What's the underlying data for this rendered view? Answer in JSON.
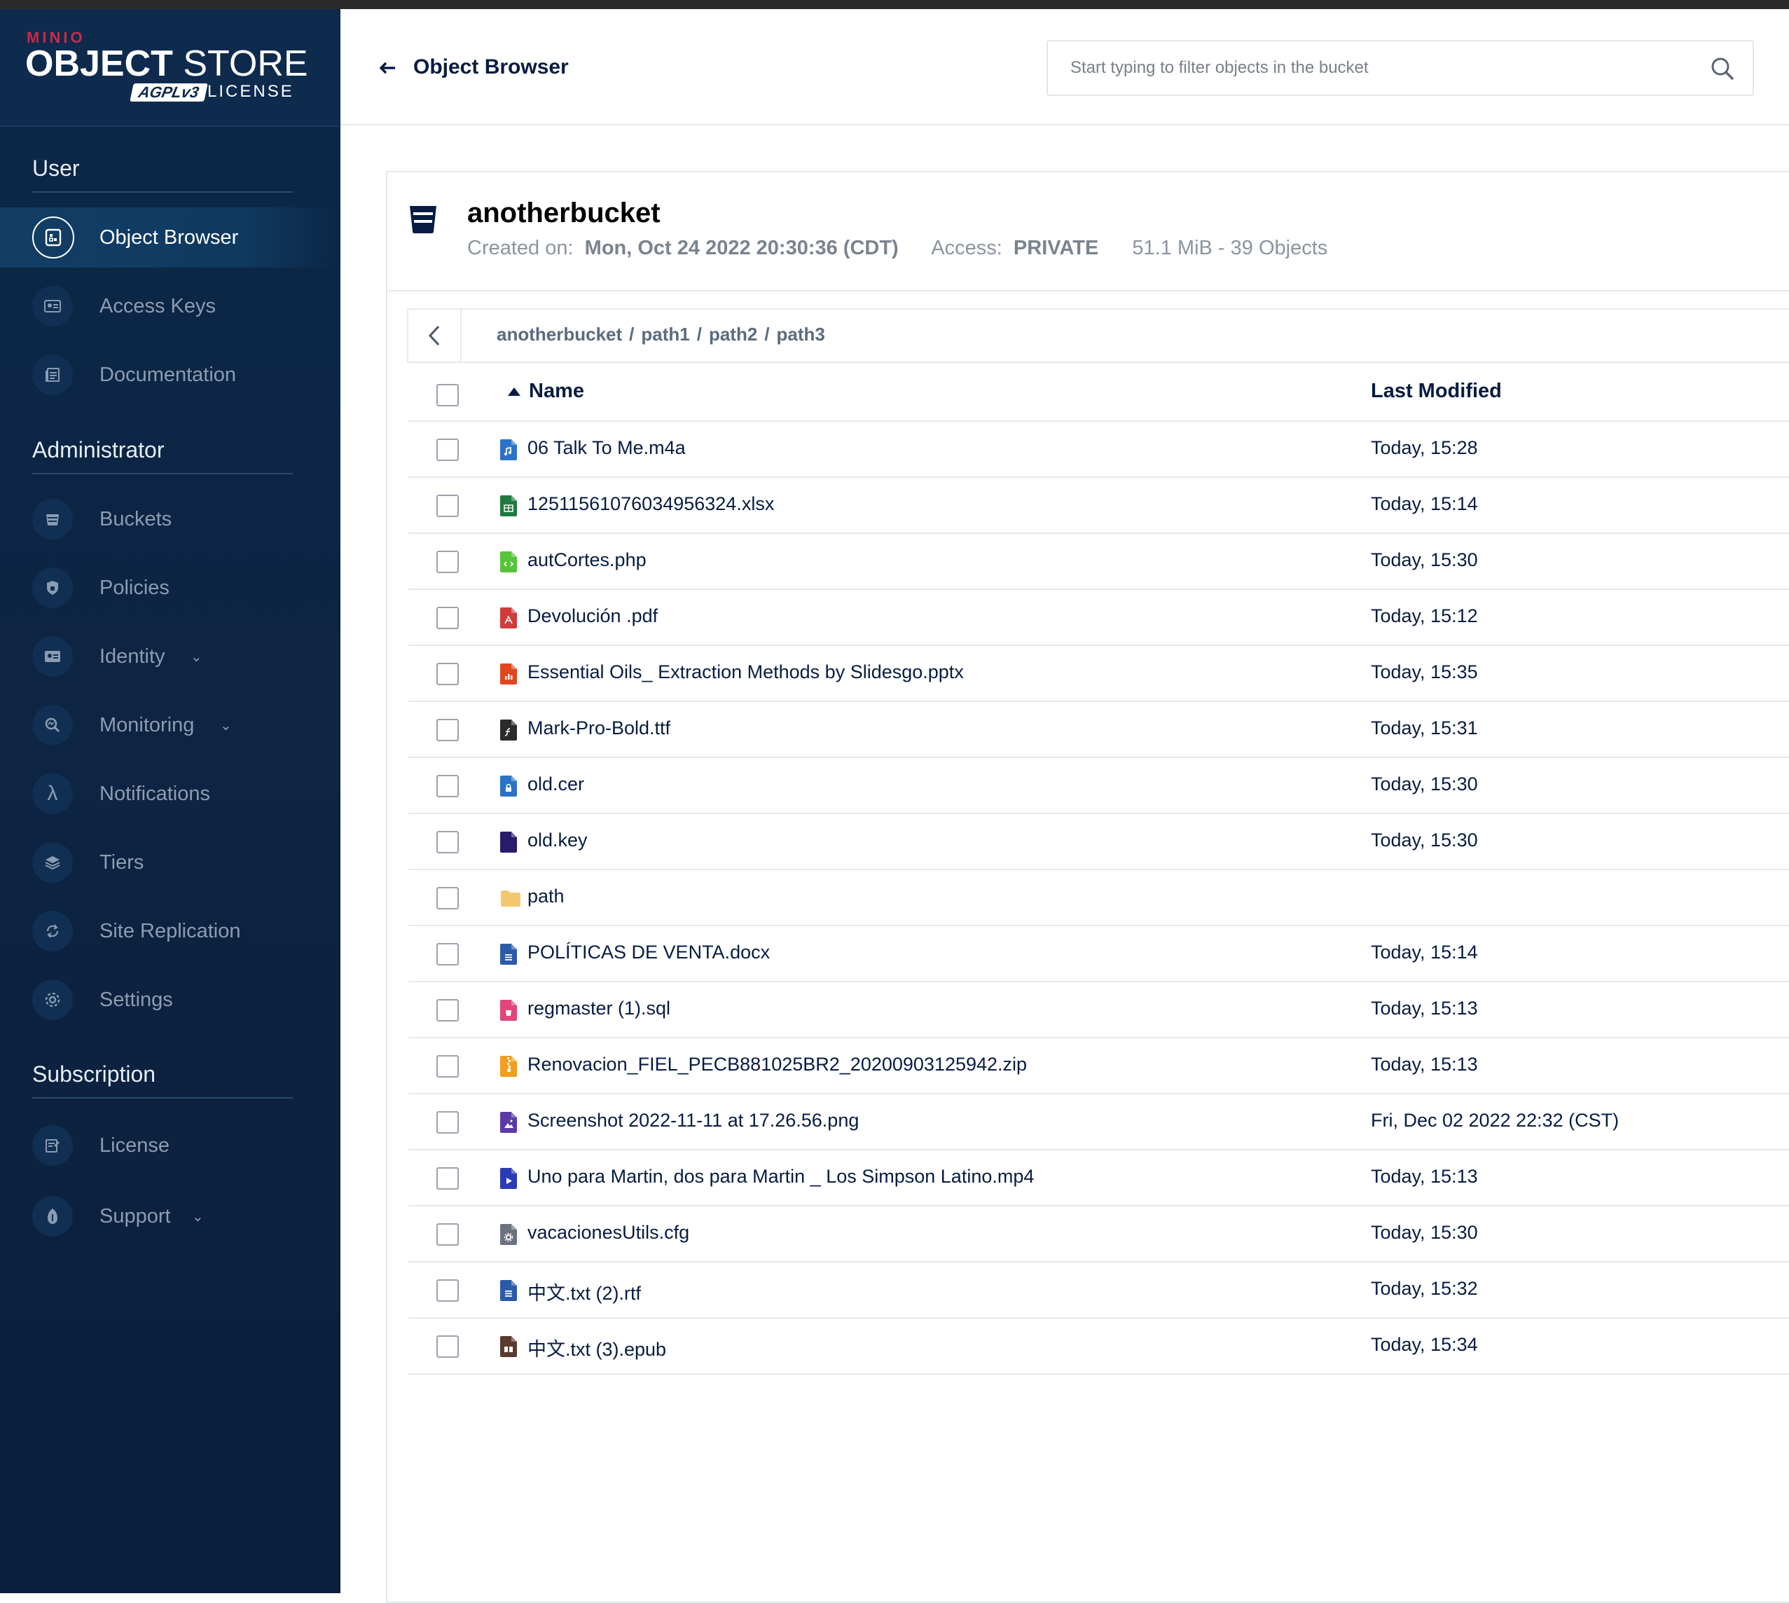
{
  "brand": {
    "maker": "MINIO",
    "product_bold": "OBJECT",
    "product_light": "STORE",
    "badge": "AGPLv3",
    "license": "LICENSE"
  },
  "sidebar": {
    "sections": [
      {
        "title": "User",
        "items": [
          {
            "label": "Object Browser",
            "icon": "object-browser-icon",
            "active": true
          },
          {
            "label": "Access Keys",
            "icon": "access-keys-icon"
          },
          {
            "label": "Documentation",
            "icon": "documentation-icon"
          }
        ]
      },
      {
        "title": "Administrator",
        "items": [
          {
            "label": "Buckets",
            "icon": "bucket-icon"
          },
          {
            "label": "Policies",
            "icon": "policies-icon"
          },
          {
            "label": "Identity",
            "icon": "identity-icon",
            "expandable": true
          },
          {
            "label": "Monitoring",
            "icon": "monitoring-icon",
            "expandable": true
          },
          {
            "label": "Notifications",
            "icon": "lambda-icon"
          },
          {
            "label": "Tiers",
            "icon": "tiers-icon"
          },
          {
            "label": "Site Replication",
            "icon": "replication-icon"
          },
          {
            "label": "Settings",
            "icon": "gear-icon"
          }
        ]
      },
      {
        "title": "Subscription",
        "items": [
          {
            "label": "License",
            "icon": "license-icon"
          },
          {
            "label": "Support",
            "icon": "support-icon",
            "expandable": true
          }
        ]
      }
    ]
  },
  "header": {
    "title": "Object Browser",
    "search_placeholder": "Start typing to filter objects in the bucket"
  },
  "bucket": {
    "name": "anotherbucket",
    "created_label": "Created on:",
    "created_value": "Mon, Oct 24 2022 20:30:36 (CDT)",
    "access_label": "Access:",
    "access_value": "PRIVATE",
    "size_summary": "51.1 MiB - 39 Objects"
  },
  "breadcrumbs": [
    "anotherbucket",
    "path1",
    "path2",
    "path3"
  ],
  "table": {
    "columns": {
      "name": "Name",
      "modified": "Last Modified"
    },
    "rows": [
      {
        "name": "06 Talk To Me.m4a",
        "modified": "Today, 15:28",
        "type": "audio",
        "color": "#2a73c8"
      },
      {
        "name": "12511561076034956324.xlsx",
        "modified": "Today, 15:14",
        "type": "sheet",
        "color": "#1e7a3e"
      },
      {
        "name": "autCortes.php",
        "modified": "Today, 15:30",
        "type": "code",
        "color": "#56c43a"
      },
      {
        "name": "Devolución .pdf",
        "modified": "Today, 15:12",
        "type": "pdf",
        "color": "#d13b3b"
      },
      {
        "name": "Essential Oils_ Extraction Methods by Slidesgo.pptx",
        "modified": "Today, 15:35",
        "type": "slides",
        "color": "#e0461f"
      },
      {
        "name": "Mark-Pro-Bold.ttf",
        "modified": "Today, 15:31",
        "type": "font",
        "color": "#2b2b2b"
      },
      {
        "name": "old.cer",
        "modified": "Today, 15:30",
        "type": "cert",
        "color": "#2a73c8"
      },
      {
        "name": "old.key",
        "modified": "Today, 15:30",
        "type": "key",
        "color": "#2a1a6b"
      },
      {
        "name": "path",
        "modified": "",
        "type": "folder",
        "color": "#f2c76e"
      },
      {
        "name": "POLÍTICAS DE VENTA.docx",
        "modified": "Today, 15:14",
        "type": "doc",
        "color": "#2b5aa8"
      },
      {
        "name": "regmaster (1).sql",
        "modified": "Today, 15:13",
        "type": "db",
        "color": "#e0457b"
      },
      {
        "name": "Renovacion_FIEL_PECB881025BR2_20200903125942.zip",
        "modified": "Today, 15:13",
        "type": "zip",
        "color": "#f29d1e"
      },
      {
        "name": "Screenshot 2022-11-11 at 17.26.56.png",
        "modified": "Fri, Dec 02 2022 22:32 (CST)",
        "type": "image",
        "color": "#5a3aa8"
      },
      {
        "name": "Uno para Martin, dos para Martin _ Los Simpson Latino.mp4",
        "modified": "Today, 15:13",
        "type": "video",
        "color": "#2a3bb8"
      },
      {
        "name": "vacacionesUtils.cfg",
        "modified": "Today, 15:30",
        "type": "config",
        "color": "#6b7380"
      },
      {
        "name": "中文.txt (2).rtf",
        "modified": "Today, 15:32",
        "type": "doc",
        "color": "#2b5aa8"
      },
      {
        "name": "中文.txt (3).epub",
        "modified": "Today, 15:34",
        "type": "book",
        "color": "#5a3a2e"
      }
    ]
  }
}
